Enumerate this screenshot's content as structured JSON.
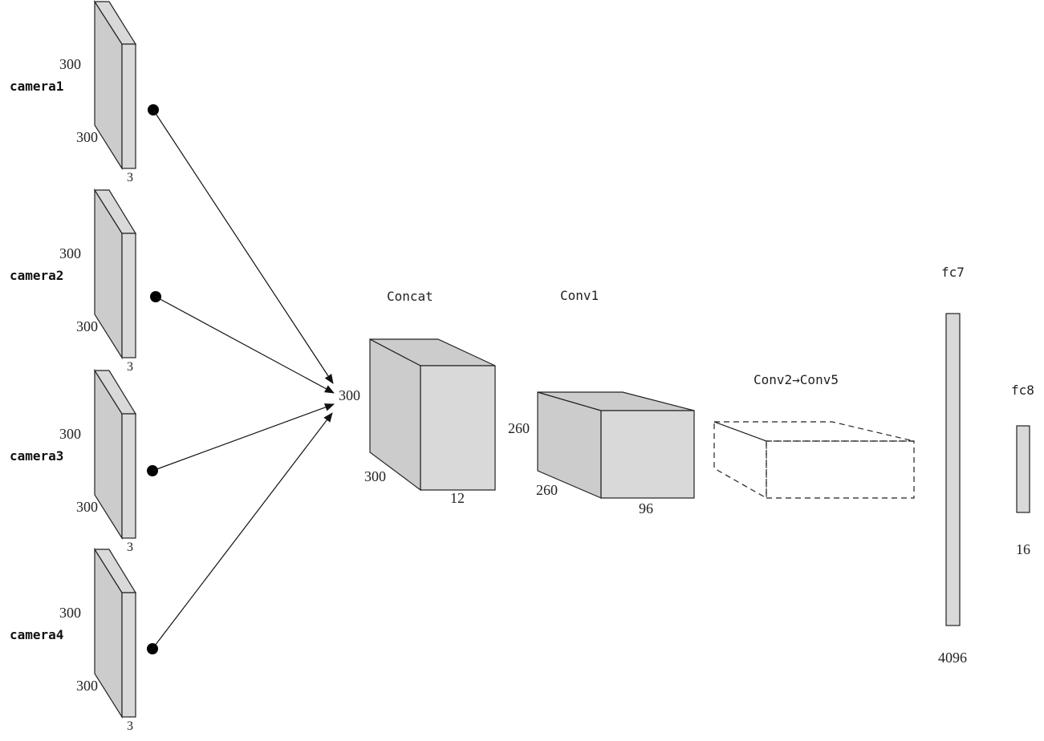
{
  "cameras": [
    {
      "label": "camera1",
      "height": "300",
      "width": "300",
      "depth": "3"
    },
    {
      "label": "camera2",
      "height": "300",
      "width": "300",
      "depth": "3"
    },
    {
      "label": "camera3",
      "height": "300",
      "width": "300",
      "depth": "3"
    },
    {
      "label": "camera4",
      "height": "300",
      "width": "300",
      "depth": "3"
    }
  ],
  "concat": {
    "label": "Concat",
    "height": "300",
    "width": "300",
    "depth": "12"
  },
  "conv1": {
    "label": "Conv1",
    "height": "260",
    "width": "260",
    "depth": "96"
  },
  "conv2_5": {
    "label": "Conv2→Conv5"
  },
  "fc7": {
    "label": "fc7",
    "size": "4096"
  },
  "fc8": {
    "label": "fc8",
    "size": "16"
  }
}
